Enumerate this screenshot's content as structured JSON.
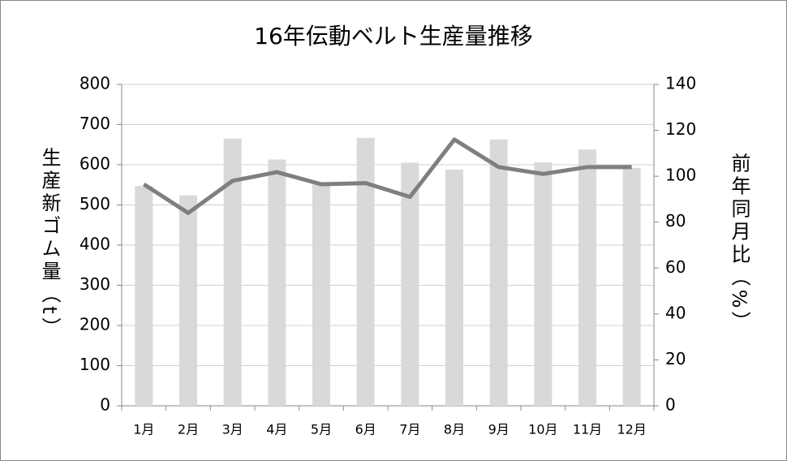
{
  "chart_data": {
    "type": "bar-line",
    "title": "16年伝動ベルト生産量推移",
    "y_label": "生産新ゴム量（t）",
    "y2_label": "前年同月比（%）",
    "categories": [
      "1月",
      "2月",
      "3月",
      "4月",
      "5月",
      "6月",
      "7月",
      "8月",
      "9月",
      "10月",
      "11月",
      "12月"
    ],
    "series": [
      {
        "type": "bar",
        "color": "#d9d9d9",
        "axis": "y",
        "values": [
          547,
          524,
          665,
          613,
          551,
          667,
          605,
          588,
          663,
          606,
          638,
          592
        ]
      },
      {
        "type": "line",
        "color": "#7f7f7f",
        "axis": "y2",
        "values": [
          96.5,
          84,
          98,
          101.8,
          96.5,
          97,
          91,
          116,
          104,
          101,
          104,
          104
        ]
      }
    ],
    "ylim": [
      0,
      800
    ],
    "yticks": [
      0,
      100,
      200,
      300,
      400,
      500,
      600,
      700,
      800
    ],
    "y2lim": [
      0,
      140
    ],
    "y2ticks": [
      0,
      20,
      40,
      60,
      80,
      100,
      120,
      140
    ],
    "grid": true
  }
}
